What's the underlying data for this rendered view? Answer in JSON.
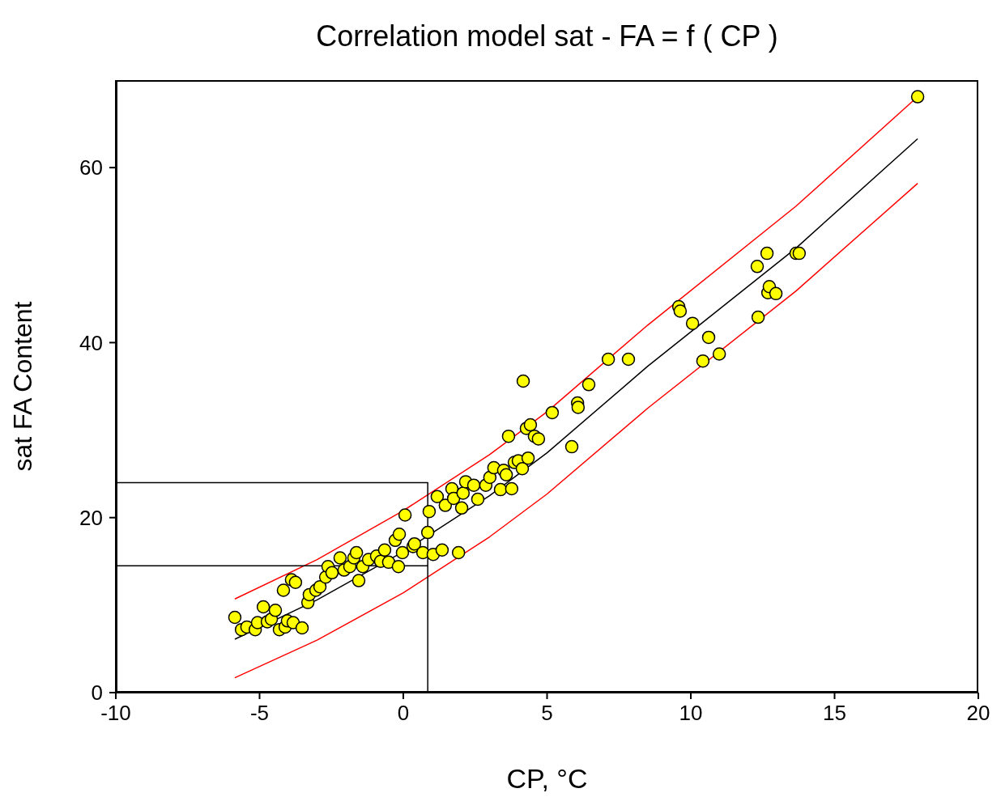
{
  "chart_data": {
    "type": "scatter",
    "title": "Correlation model sat - FA = f ( CP )",
    "xlabel": "CP,  °C",
    "ylabel": "sat FA Content",
    "xlim": [
      -10,
      20
    ],
    "xticks": [
      -10,
      -5,
      0,
      5,
      10,
      15,
      20
    ],
    "ylim": [
      0,
      70
    ],
    "yticks": [
      0,
      20,
      40,
      60
    ],
    "grid": false,
    "marker": "circle",
    "series": [
      {
        "type": "line",
        "color": "#ff0000",
        "line_style": "solid",
        "marker": "none",
        "x": [
          -5.86,
          -3,
          0,
          3,
          5,
          8.5,
          13.66,
          17.89
        ],
        "values": [
          10.7,
          15.2,
          20.8,
          27.2,
          32.1,
          42.0,
          55.6,
          68.1
        ]
      },
      {
        "type": "line",
        "color": "#ff0000",
        "line_style": "solid",
        "marker": "none",
        "x": [
          -5.86,
          -3,
          0,
          3,
          5,
          8.5,
          13.66,
          17.89
        ],
        "values": [
          1.7,
          6.0,
          11.4,
          17.8,
          22.7,
          32.5,
          45.9,
          58.2
        ]
      },
      {
        "type": "line",
        "color": "#000000",
        "line_style": "solid",
        "marker": "none",
        "x": [
          -5.86,
          -3,
          0,
          3,
          5,
          8.5,
          13.66,
          17.89
        ],
        "values": [
          6.1,
          10.6,
          16.1,
          22.5,
          27.4,
          37.3,
          50.8,
          63.3
        ]
      },
      {
        "type": "line",
        "color": "#000000",
        "line_style": "solid",
        "marker": "none",
        "x": [
          -10,
          0.85,
          0.85
        ],
        "values": [
          24,
          24,
          0
        ]
      },
      {
        "type": "line",
        "color": "#000000",
        "line_style": "solid",
        "marker": "none",
        "x": [
          -10,
          0.85
        ],
        "values": [
          14.5,
          14.5
        ]
      },
      {
        "color": "#ffff00",
        "x": [
          -5.86,
          -5.63,
          -5.44,
          -5.15,
          -5.07,
          -4.87,
          -4.73,
          -4.59,
          -4.45,
          -4.31,
          -4.17,
          -4.11,
          -4.03,
          -3.89,
          -3.83,
          -3.75,
          -3.52,
          -3.32,
          -3.27,
          -3.04,
          -2.9,
          -2.7,
          -2.62,
          -2.48,
          -2.2,
          -2.06,
          -1.86,
          -1.72,
          -1.63,
          -1.55,
          -1.41,
          -1.21,
          -0.93,
          -0.79,
          -0.65,
          -0.51,
          -0.28,
          -0.17,
          -0.14,
          -0.03,
          0.06,
          0.34,
          0.39,
          0.68,
          0.85,
          0.9,
          1.04,
          1.18,
          1.35,
          1.46,
          1.69,
          1.75,
          1.92,
          2.03,
          2.08,
          2.17,
          2.45,
          2.59,
          2.87,
          3.01,
          3.15,
          3.38,
          3.49,
          3.58,
          3.66,
          3.77,
          3.86,
          4.0,
          4.14,
          4.17,
          4.28,
          4.34,
          4.42,
          4.56,
          4.7,
          5.18,
          5.86,
          6.06,
          6.08,
          6.45,
          7.13,
          7.83,
          9.58,
          9.63,
          10.06,
          10.42,
          10.62,
          10.99,
          12.31,
          12.34,
          12.65,
          12.68,
          12.73,
          12.96,
          13.66,
          13.77,
          17.89
        ],
        "values": [
          8.6,
          7.2,
          7.5,
          7.2,
          8.0,
          9.8,
          8.1,
          8.4,
          9.4,
          7.2,
          11.7,
          7.5,
          8.2,
          12.9,
          8.0,
          12.6,
          7.4,
          10.3,
          11.2,
          11.7,
          12.1,
          13.2,
          14.4,
          13.7,
          15.4,
          14.0,
          14.4,
          15.4,
          16.0,
          12.8,
          14.4,
          15.2,
          15.6,
          15.0,
          16.3,
          14.9,
          17.4,
          14.4,
          18.1,
          16.0,
          20.3,
          16.7,
          17.0,
          16.0,
          18.3,
          20.7,
          15.8,
          22.4,
          16.3,
          21.4,
          23.3,
          22.2,
          16.0,
          21.1,
          22.8,
          24.1,
          23.7,
          22.1,
          23.7,
          24.6,
          25.7,
          23.2,
          25.4,
          24.9,
          29.3,
          23.3,
          26.3,
          26.5,
          25.6,
          35.6,
          30.2,
          26.8,
          30.6,
          29.3,
          29.0,
          32.0,
          28.1,
          33.1,
          32.6,
          35.2,
          38.1,
          38.1,
          44.1,
          43.6,
          42.2,
          37.9,
          40.6,
          38.7,
          48.7,
          42.9,
          50.2,
          45.7,
          46.4,
          45.6,
          50.2,
          50.2,
          68.1
        ]
      }
    ]
  }
}
